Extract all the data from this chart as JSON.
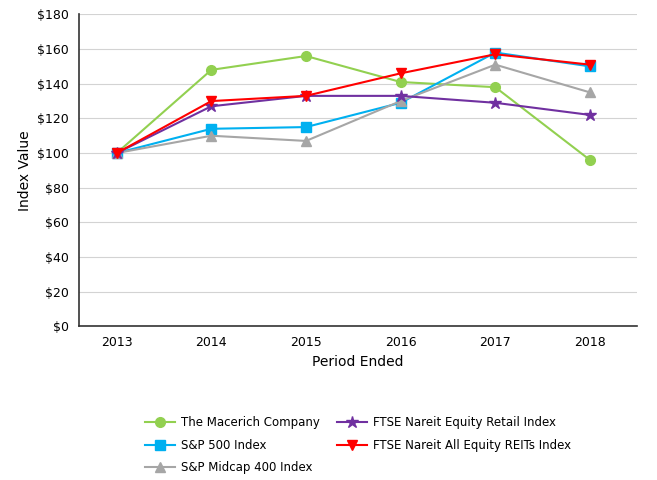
{
  "years": [
    2013,
    2014,
    2015,
    2016,
    2017,
    2018
  ],
  "series_order": [
    "The Macerich Company",
    "S&P 500 Index",
    "S&P Midcap 400 Index",
    "FTSE Nareit Equity Retail Index",
    "FTSE Nareit All Equity REITs Index"
  ],
  "series": {
    "The Macerich Company": {
      "values": [
        100,
        148,
        156,
        141,
        138,
        96
      ],
      "color": "#92d050",
      "marker": "o"
    },
    "S&P 500 Index": {
      "values": [
        100,
        114,
        115,
        129,
        158,
        150
      ],
      "color": "#00b0f0",
      "marker": "s"
    },
    "S&P Midcap 400 Index": {
      "values": [
        100,
        110,
        107,
        130,
        151,
        135
      ],
      "color": "#a6a6a6",
      "marker": "^"
    },
    "FTSE Nareit Equity Retail Index": {
      "values": [
        100,
        127,
        133,
        133,
        129,
        122
      ],
      "color": "#7030a0",
      "marker": "*"
    },
    "FTSE Nareit All Equity REITs Index": {
      "values": [
        100,
        130,
        133,
        146,
        157,
        151
      ],
      "color": "#ff0000",
      "marker": "v"
    }
  },
  "legend_order": [
    0,
    1,
    2,
    3,
    4
  ],
  "xlabel": "Period Ended",
  "ylabel": "Index Value",
  "ylim": [
    0,
    180
  ],
  "yticks": [
    0,
    20,
    40,
    60,
    80,
    100,
    120,
    140,
    160,
    180
  ],
  "background_color": "#ffffff",
  "grid_color": "#d3d3d3",
  "spine_color": "#333333"
}
